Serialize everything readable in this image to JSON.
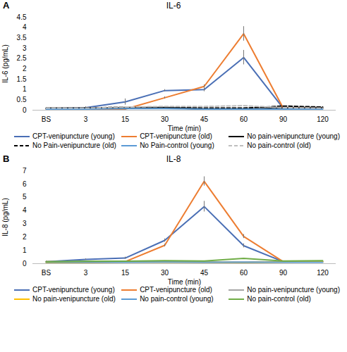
{
  "chart_data": [
    {
      "type": "line",
      "title": "IL-6",
      "annotations": [
        "A"
      ],
      "x_label": "Time (min)",
      "y_label": "IL-6 (pg/mL)",
      "categories": [
        "BS",
        "3",
        "15",
        "30",
        "45",
        "60",
        "90",
        "120"
      ],
      "ylim": [
        0,
        4.5
      ],
      "yticks": [
        0,
        0.5,
        1,
        1.5,
        2,
        2.5,
        3,
        3.5,
        4,
        4.5
      ],
      "grid": false,
      "legend": "bottom",
      "series": [
        {
          "name": "CPT-venipuncture (young)",
          "color": "#4a6fb5",
          "line_style": "solid",
          "values": [
            0.08,
            0.12,
            0.4,
            0.95,
            1.0,
            2.55,
            0.1,
            0.1
          ],
          "errors": [
            0.05,
            0.05,
            0.15,
            0.05,
            0.1,
            0.35,
            0.02,
            0.02
          ]
        },
        {
          "name": "CPT-venipuncture (old)",
          "color": "#ed7d31",
          "line_style": "solid",
          "values": [
            0.05,
            0.05,
            0.05,
            0.6,
            1.15,
            3.7,
            0.1,
            0.1
          ],
          "errors": [
            0.02,
            0.03,
            0.1,
            0.05,
            0.08,
            0.35,
            0.02,
            0.02
          ]
        },
        {
          "name": "No pain-venipuncture (young)",
          "color": "#000000",
          "line_style": "solid",
          "values": [
            0.1,
            0.1,
            0.1,
            0.12,
            0.05,
            0.05,
            0.1,
            0.1
          ]
        },
        {
          "name": "No Pain-venipuncture (old)",
          "color": "#000000",
          "line_style": "dashed",
          "values": [
            0.08,
            0.1,
            0.15,
            0.15,
            0.1,
            0.1,
            0.2,
            0.15
          ]
        },
        {
          "name": "No Pain-control (young)",
          "color": "#5b9bd5",
          "line_style": "solid",
          "values": [
            0.05,
            0.05,
            0.08,
            0.08,
            0.05,
            0.05,
            0.05,
            0.05
          ]
        },
        {
          "name": "No pain-control (old)",
          "color": "#bfbfbf",
          "line_style": "dashed",
          "values": [
            0.1,
            0.1,
            0.15,
            0.18,
            0.18,
            0.22,
            0.12,
            0.1
          ]
        }
      ]
    },
    {
      "type": "line",
      "title": "IL-8",
      "annotations": [
        "B"
      ],
      "x_label": "Time (min)",
      "y_label": "IL-8 (pg/mL)",
      "categories": [
        "BS",
        "3",
        "15",
        "30",
        "45",
        "60",
        "90",
        "120"
      ],
      "ylim": [
        0,
        7
      ],
      "yticks": [
        0,
        1,
        2,
        3,
        4,
        5,
        6,
        7
      ],
      "grid": false,
      "legend": "bottom",
      "series": [
        {
          "name": "CPT-venipuncture (young)",
          "color": "#4a6fb5",
          "line_style": "solid",
          "values": [
            0.15,
            0.32,
            0.42,
            1.75,
            4.3,
            1.35,
            0.15,
            0.15
          ],
          "errors": [
            0.05,
            0.05,
            0.08,
            0.12,
            0.4,
            0.15,
            0.03,
            0.03
          ]
        },
        {
          "name": "CPT-venipuncture (old)",
          "color": "#ed7d31",
          "line_style": "solid",
          "values": [
            0.15,
            0.1,
            0.15,
            1.38,
            6.2,
            2.05,
            0.15,
            0.15
          ],
          "errors": [
            0.03,
            0.03,
            0.05,
            0.1,
            0.35,
            0.15,
            0.03,
            0.03
          ]
        },
        {
          "name": "No pain-venipuncture (young)",
          "color": "#a5a5a5",
          "line_style": "solid",
          "values": [
            0.15,
            0.15,
            0.15,
            0.15,
            0.12,
            0.12,
            0.15,
            0.15
          ]
        },
        {
          "name": "No pain-venipuncture (old)",
          "color": "#ffc000",
          "line_style": "solid",
          "values": [
            0.08,
            0.08,
            0.12,
            0.1,
            0.1,
            0.08,
            0.12,
            0.15
          ]
        },
        {
          "name": "No pain-control (young)",
          "color": "#5b9bd5",
          "line_style": "solid",
          "values": [
            0.1,
            0.1,
            0.1,
            0.12,
            0.1,
            0.1,
            0.1,
            0.1
          ]
        },
        {
          "name": "No pain-control (old)",
          "color": "#70ad47",
          "line_style": "solid",
          "values": [
            0.15,
            0.18,
            0.18,
            0.22,
            0.2,
            0.4,
            0.2,
            0.22
          ]
        }
      ]
    }
  ]
}
